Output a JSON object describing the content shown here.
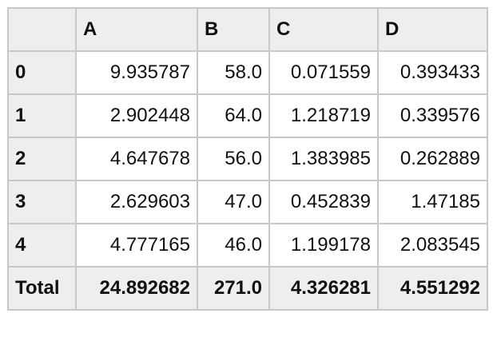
{
  "table": {
    "columns": [
      "",
      "A",
      "B",
      "C",
      "D"
    ],
    "rows": [
      {
        "index": "0",
        "values": [
          "9.935787",
          "58.0",
          "0.071559",
          "0.393433"
        ]
      },
      {
        "index": "1",
        "values": [
          "2.902448",
          "64.0",
          "1.218719",
          "0.339576"
        ]
      },
      {
        "index": "2",
        "values": [
          "4.647678",
          "56.0",
          "1.383985",
          "0.262889"
        ]
      },
      {
        "index": "3",
        "values": [
          "2.629603",
          "47.0",
          "0.452839",
          "1.47185"
        ]
      },
      {
        "index": "4",
        "values": [
          "4.777165",
          "46.0",
          "1.199178",
          "2.083545"
        ]
      }
    ],
    "total": {
      "label": "Total",
      "values": [
        "24.892682",
        "271.0",
        "4.326281",
        "4.551292"
      ]
    }
  },
  "colors": {
    "header_bg": "#eeeeee",
    "cell_bg": "#ffffff",
    "border": "#c8c8c8",
    "text": "#111111"
  }
}
